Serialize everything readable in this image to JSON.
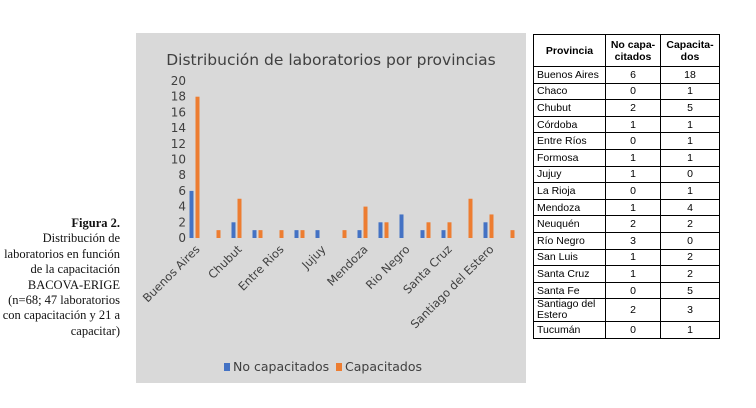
{
  "caption": {
    "title": "Figura 2.",
    "body": "Distribución de laboratorios en función de la capacitación BACOVA-ERIGE (n=68; 47 laboratorios con capacitación y 21 a capacitar)"
  },
  "chart_data": {
    "type": "bar",
    "title": "Distribución de laboratorios por provincias",
    "categories": [
      "Buenos Aires",
      "Chaco",
      "Chubut",
      "Córdoba",
      "Entre Ríos",
      "Formosa",
      "Jujuy",
      "La Rioja",
      "Mendoza",
      "Neuquén",
      "Río Negro",
      "San Luis",
      "Santa Cruz",
      "Santa Fe",
      "Santiago del Estero",
      "Tucumán"
    ],
    "shown_tick_labels": [
      "Buenos Aires",
      "Chubut",
      "Entre Rios",
      "Jujuy",
      "Mendoza",
      "Rio Negro",
      "Santa Cruz",
      "Santiago del Estero"
    ],
    "series": [
      {
        "name": "No capacitados",
        "color": "#4472c4",
        "values": [
          6,
          0,
          2,
          1,
          0,
          1,
          1,
          0,
          1,
          2,
          3,
          1,
          1,
          0,
          2,
          0
        ]
      },
      {
        "name": "Capacitados",
        "color": "#ed7d31",
        "values": [
          18,
          1,
          5,
          1,
          1,
          1,
          0,
          1,
          4,
          2,
          0,
          2,
          2,
          5,
          3,
          1
        ]
      }
    ],
    "ylim": [
      0,
      20
    ],
    "yticks": [
      0,
      2,
      4,
      6,
      8,
      10,
      12,
      14,
      16,
      18,
      20
    ],
    "grid": false,
    "legend_position": "bottom"
  },
  "table": {
    "headers": [
      "Provincia",
      "No capa-citados",
      "Capacita-dos"
    ],
    "rows": [
      [
        "Buenos Aires",
        "6",
        "18"
      ],
      [
        "Chaco",
        "0",
        "1"
      ],
      [
        "Chubut",
        "2",
        "5"
      ],
      [
        "Córdoba",
        "1",
        "1"
      ],
      [
        "Entre Ríos",
        "0",
        "1"
      ],
      [
        "Formosa",
        "1",
        "1"
      ],
      [
        "Jujuy",
        "1",
        "0"
      ],
      [
        "La Rioja",
        "0",
        "1"
      ],
      [
        "Mendoza",
        "1",
        "4"
      ],
      [
        "Neuquén",
        "2",
        "2"
      ],
      [
        "Río Negro",
        "3",
        "0"
      ],
      [
        "San Luis",
        "1",
        "2"
      ],
      [
        "Santa Cruz",
        "1",
        "2"
      ],
      [
        "Santa Fe",
        "0",
        "5"
      ],
      [
        "Santiago del Estero",
        "2",
        "3"
      ],
      [
        "Tucumán",
        "0",
        "1"
      ]
    ]
  }
}
